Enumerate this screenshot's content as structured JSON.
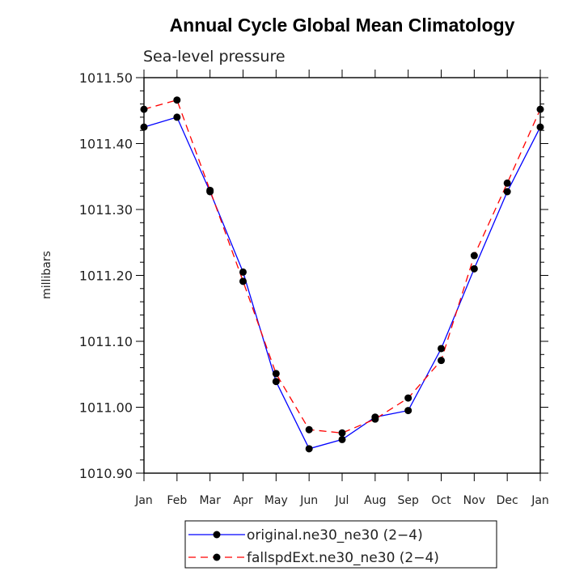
{
  "chart_data": {
    "type": "line",
    "title": "Annual Cycle Global Mean Climatology",
    "subtitle": "Sea-level pressure",
    "xlabel": "",
    "ylabel": "millibars",
    "categories": [
      "Jan",
      "Feb",
      "Mar",
      "Apr",
      "May",
      "Jun",
      "Jul",
      "Aug",
      "Sep",
      "Oct",
      "Nov",
      "Dec",
      "Jan"
    ],
    "ylim": [
      1010.9,
      1011.5
    ],
    "yticks": [
      "1010.90",
      "1011.00",
      "1011.10",
      "1011.20",
      "1011.30",
      "1011.40",
      "1011.50"
    ],
    "ytick_values": [
      1010.9,
      1011.0,
      1011.1,
      1011.2,
      1011.3,
      1011.4,
      1011.5
    ],
    "legend_position": "bottom",
    "series": [
      {
        "name": "original.ne30_ne30 (2−4)",
        "color": "#0000ff",
        "dash": "solid",
        "values": [
          1011.425,
          1011.44,
          1011.327,
          1011.205,
          1011.039,
          1010.937,
          1010.951,
          1010.985,
          1010.995,
          1011.089,
          1011.21,
          1011.327,
          1011.425
        ]
      },
      {
        "name": "fallspdExt.ne30_ne30 (2−4)",
        "color": "#ff0000",
        "dash": "dashed",
        "values": [
          1011.452,
          1011.466,
          1011.329,
          1011.191,
          1011.051,
          1010.966,
          1010.961,
          1010.982,
          1011.014,
          1011.071,
          1011.23,
          1011.34,
          1011.452
        ]
      }
    ]
  }
}
